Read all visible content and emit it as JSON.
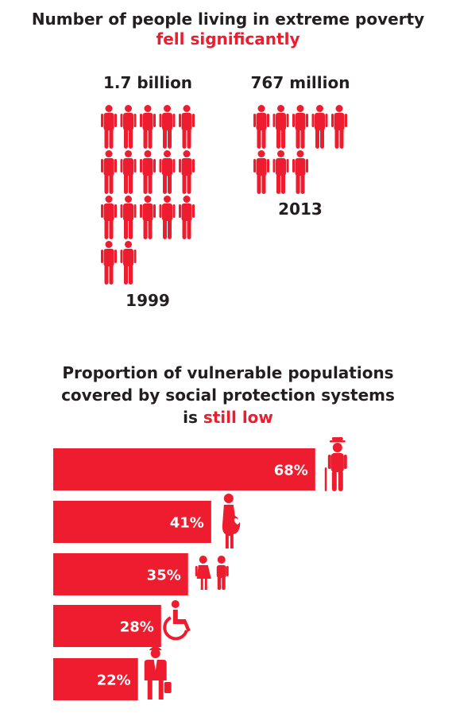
{
  "colors": {
    "accent": "#ed1c2e",
    "text": "#231f20"
  },
  "poverty": {
    "title_prefix": "Number of people living in extreme poverty",
    "title_highlight": "fell significantly",
    "groups": [
      {
        "amount_label": "1.7 billion",
        "year": "1999",
        "icon_count": 17
      },
      {
        "amount_label": "767 million",
        "year": "2013",
        "icon_count": 8
      }
    ]
  },
  "protection": {
    "title_line1": "Proportion of vulnerable populations",
    "title_line2": "covered by social protection systems",
    "title_line3_prefix": "is ",
    "title_highlight": "still low"
  },
  "chart_data": {
    "type": "bar",
    "orientation": "horizontal",
    "title": "Proportion of vulnerable populations covered by social protection systems is still low",
    "categories": [
      "older-person",
      "pregnant-woman",
      "children",
      "person-with-disability",
      "worker"
    ],
    "icons": [
      "elderly-man-icon",
      "pregnant-woman-icon",
      "children-icon",
      "wheelchair-icon",
      "worker-icon"
    ],
    "values": [
      68,
      41,
      35,
      28,
      22
    ],
    "value_labels": [
      "68%",
      "41%",
      "35%",
      "28%",
      "22%"
    ],
    "unit": "%",
    "xlim": [
      0,
      100
    ],
    "grid": false,
    "color": "#ed1c2e"
  }
}
